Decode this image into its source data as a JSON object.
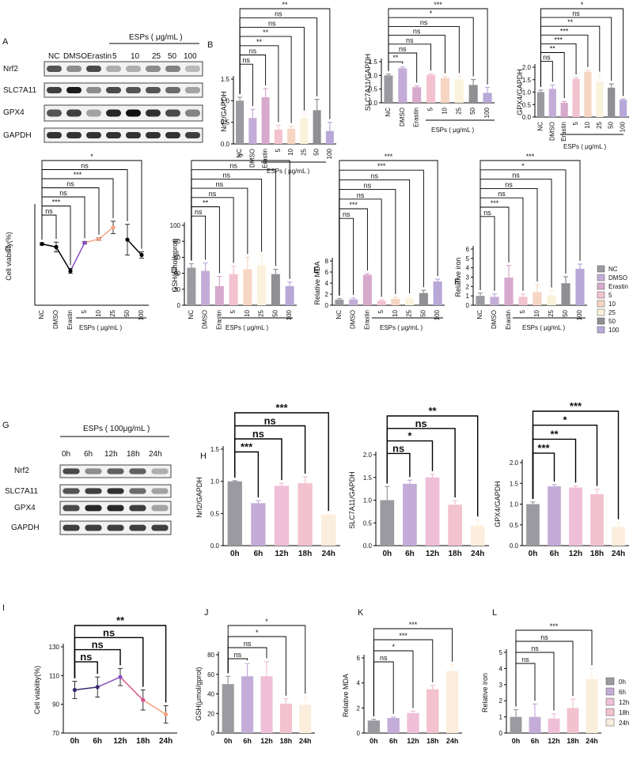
{
  "colors": {
    "NC": "#9a9aa0",
    "DMSO": "#c4acd8",
    "Erastin": "#d7a9cc",
    "5": "#f2c2cf",
    "10": "#f6d5c3",
    "25": "#fbf2dc",
    "50": "#8f8f94",
    "100": "#b7a8d8",
    "0h": "#9a9aa0",
    "6h": "#c4acd8",
    "12h": "#efbfd8",
    "18h": "#f2c2cf",
    "24h": "#fbeedd",
    "line_a": "#000000",
    "line_b": "#8a4fbf",
    "line_c": "#f3a07f"
  },
  "panel_a": {
    "letter": "A",
    "header": "ESPs ( μg/mL )",
    "lanes": [
      "NC",
      "DMSO",
      "Erastin",
      "5",
      "10",
      "25",
      "50",
      "100"
    ],
    "rows": [
      "Nrf2",
      "SLC7A11",
      "GPX4",
      "GAPDH"
    ]
  },
  "panel_g": {
    "letter": "G",
    "header": "ESPs ( 100μg/mL )",
    "lanes": [
      "0h",
      "6h",
      "12h",
      "18h",
      "24h"
    ],
    "rows": [
      "Nrf2",
      "SLC7A11",
      "GPX4",
      "GAPDH"
    ]
  },
  "group_label": "ESPs ( μg/mL )",
  "legend_top": {
    "items": [
      "NC",
      "DMSO",
      "Erastin",
      "5",
      "10",
      "25",
      "50",
      "100"
    ]
  },
  "legend_bottom": {
    "items": [
      "0h",
      "6h",
      "12h",
      "18h",
      "24h"
    ]
  },
  "chart_data": [
    {
      "id": "B1",
      "letter": "B",
      "type": "bar",
      "ylabel": "Nrf2/GAPDH",
      "categories": [
        "NC",
        "DMSO",
        "Erastin",
        "5",
        "10",
        "25",
        "50",
        "100"
      ],
      "values": [
        1.0,
        0.6,
        1.08,
        0.33,
        0.35,
        0.6,
        0.78,
        0.3
      ],
      "errors": [
        0.08,
        0.2,
        0.2,
        0.1,
        0.06,
        0.1,
        0.25,
        0.2
      ],
      "ylim": [
        0,
        1.5
      ],
      "yticks": [
        0,
        0.5,
        1.0,
        1.5
      ],
      "sig": [
        {
          "to": "DMSO",
          "label": "ns"
        },
        {
          "to": "Erastin",
          "label": "ns"
        },
        {
          "to": "5",
          "label": "**"
        },
        {
          "to": "10",
          "label": "**"
        },
        {
          "to": "25",
          "label": "ns"
        },
        {
          "to": "50",
          "label": "ns"
        },
        {
          "to": "100",
          "label": "**"
        }
      ]
    },
    {
      "id": "B2",
      "type": "bar",
      "ylabel": "SLC7A11/GAPDH",
      "categories": [
        "NC",
        "DMSO",
        "Erastin",
        "5",
        "10",
        "25",
        "50",
        "100"
      ],
      "values": [
        1.0,
        1.26,
        0.57,
        1.02,
        0.9,
        0.85,
        0.65,
        0.36
      ],
      "errors": [
        0.05,
        0.05,
        0.05,
        0.04,
        0.06,
        0.12,
        0.2,
        0.2
      ],
      "ylim": [
        0,
        1.5
      ],
      "yticks": [
        0,
        0.5,
        1.0,
        1.5
      ],
      "sig": [
        {
          "to": "DMSO",
          "label": "**"
        },
        {
          "to": "Erastin",
          "label": "ns"
        },
        {
          "to": "5",
          "label": "ns"
        },
        {
          "to": "10",
          "label": "ns"
        },
        {
          "to": "25",
          "label": "ns"
        },
        {
          "to": "50",
          "label": "*"
        },
        {
          "to": "100",
          "label": "***"
        }
      ]
    },
    {
      "id": "B3",
      "type": "bar",
      "ylabel": "GPX4/GAPDH",
      "categories": [
        "NC",
        "DMSO",
        "Erastin",
        "5",
        "10",
        "25",
        "50",
        "100"
      ],
      "values": [
        1.0,
        1.13,
        0.57,
        1.53,
        1.82,
        1.42,
        1.18,
        0.69
      ],
      "errors": [
        0.08,
        0.15,
        0.06,
        0.05,
        0.06,
        0.28,
        0.15,
        0.03
      ],
      "ylim": [
        0,
        2.0
      ],
      "yticks": [
        0,
        0.5,
        1.0,
        1.5,
        2.0
      ],
      "sig": [
        {
          "to": "DMSO",
          "label": "ns"
        },
        {
          "to": "Erastin",
          "label": "**"
        },
        {
          "to": "5",
          "label": "***"
        },
        {
          "to": "10",
          "label": "***"
        },
        {
          "to": "25",
          "label": "**"
        },
        {
          "to": "50",
          "label": "ns"
        },
        {
          "to": "100",
          "label": "*"
        }
      ]
    },
    {
      "id": "C",
      "letter": "C",
      "type": "line",
      "ylabel": "Cell viability(%)",
      "categories": [
        "NC",
        "DMSO",
        "Erastin",
        "5",
        "10",
        "25",
        "50",
        "100"
      ],
      "values": [
        100,
        95,
        56,
        102,
        108,
        127,
        107,
        82
      ],
      "errors": [
        2,
        8,
        4,
        2,
        2,
        10,
        25,
        5
      ],
      "ylim": [
        0,
        160
      ],
      "sig": [
        {
          "to": "DMSO",
          "label": "ns"
        },
        {
          "to": "Erastin",
          "label": "***"
        },
        {
          "to": "5",
          "label": "ns"
        },
        {
          "to": "10",
          "label": "ns"
        },
        {
          "to": "25",
          "label": "***"
        },
        {
          "to": "50",
          "label": "ns"
        },
        {
          "to": "100",
          "label": "*"
        }
      ]
    },
    {
      "id": "D",
      "letter": "D",
      "type": "bar",
      "ylabel": "GSH(μmol/gprot)",
      "categories": [
        "NC",
        "DMSO",
        "Erastin",
        "5",
        "10",
        "25",
        "50",
        "100"
      ],
      "values": [
        47,
        43,
        24,
        39,
        45,
        50,
        39,
        24
      ],
      "errors": [
        5,
        10,
        12,
        10,
        15,
        13,
        6,
        5
      ],
      "ylim": [
        0,
        100
      ],
      "yticks": [
        0,
        20,
        40,
        60,
        80,
        100
      ],
      "sig": [
        {
          "to": "DMSO",
          "label": "ns"
        },
        {
          "to": "Erastin",
          "label": "**"
        },
        {
          "to": "5",
          "label": "ns"
        },
        {
          "to": "10",
          "label": "ns"
        },
        {
          "to": "25",
          "label": "ns"
        },
        {
          "to": "50",
          "label": "ns"
        },
        {
          "to": "100",
          "label": "**"
        }
      ]
    },
    {
      "id": "E",
      "letter": "E",
      "type": "bar",
      "ylabel": "Relative MDA",
      "categories": [
        "NC",
        "DMSO",
        "Erastin",
        "5",
        "10",
        "25",
        "50",
        "100"
      ],
      "values": [
        1.0,
        1.05,
        5.5,
        0.8,
        1.15,
        1.2,
        2.2,
        4.3
      ],
      "errors": [
        0.2,
        0.25,
        0.2,
        0.15,
        0.3,
        0.35,
        0.5,
        0.4
      ],
      "ylim": [
        0,
        8
      ],
      "yticks": [
        0,
        2,
        4,
        6,
        8
      ],
      "sig": [
        {
          "to": "DMSO",
          "label": "ns"
        },
        {
          "to": "Erastin",
          "label": "***"
        },
        {
          "to": "5",
          "label": "ns"
        },
        {
          "to": "10",
          "label": "ns"
        },
        {
          "to": "25",
          "label": "ns"
        },
        {
          "to": "50",
          "label": "***"
        },
        {
          "to": "100",
          "label": "***"
        }
      ]
    },
    {
      "id": "F",
      "letter": "F",
      "type": "bar",
      "ylabel": "Relative iron",
      "categories": [
        "NC",
        "DMSO",
        "Erastin",
        "5",
        "10",
        "25",
        "50",
        "100"
      ],
      "values": [
        1.0,
        0.9,
        2.95,
        0.9,
        1.4,
        1.05,
        2.35,
        3.9
      ],
      "errors": [
        0.3,
        0.3,
        1.3,
        0.3,
        0.8,
        0.5,
        0.7,
        0.5
      ],
      "ylim": [
        0,
        6
      ],
      "yticks": [
        0,
        1,
        2,
        3,
        4,
        5,
        6
      ],
      "sig": [
        {
          "to": "DMSO",
          "label": "ns"
        },
        {
          "to": "Erastin",
          "label": "***"
        },
        {
          "to": "5",
          "label": "ns"
        },
        {
          "to": "10",
          "label": "ns"
        },
        {
          "to": "25",
          "label": "ns"
        },
        {
          "to": "50",
          "label": "*"
        },
        {
          "to": "100",
          "label": "***"
        }
      ]
    },
    {
      "id": "H1",
      "letter": "H",
      "type": "bar",
      "ylabel": "Nrf2/GAPDH",
      "categories": [
        "0h",
        "6h",
        "12h",
        "18h",
        "24h"
      ],
      "values": [
        1.0,
        0.66,
        0.93,
        0.97,
        0.48
      ],
      "errors": [
        0.01,
        0.04,
        0.04,
        0.1,
        0.01
      ],
      "ylim": [
        0,
        1.5
      ],
      "yticks": [
        0.0,
        0.5,
        1.0,
        1.5
      ],
      "sig": [
        {
          "to": "6h",
          "label": "***"
        },
        {
          "to": "12h",
          "label": "ns"
        },
        {
          "to": "18h",
          "label": "ns"
        },
        {
          "to": "24h",
          "label": "***"
        }
      ]
    },
    {
      "id": "H2",
      "type": "bar",
      "ylabel": "SLC7A11/GAPDH",
      "categories": [
        "0h",
        "6h",
        "12h",
        "18h",
        "24h"
      ],
      "values": [
        1.0,
        1.36,
        1.5,
        0.9,
        0.44
      ],
      "errors": [
        0.3,
        0.08,
        0.07,
        0.09,
        0.13
      ],
      "ylim": [
        0,
        2.0
      ],
      "yticks": [
        0.0,
        0.5,
        1.0,
        1.5,
        2.0
      ],
      "sig": [
        {
          "to": "6h",
          "label": "ns"
        },
        {
          "to": "12h",
          "label": "*"
        },
        {
          "to": "18h",
          "label": "ns"
        },
        {
          "to": "24h",
          "label": "**"
        }
      ]
    },
    {
      "id": "H3",
      "type": "bar",
      "ylabel": "GPX4/GAPDH",
      "categories": [
        "0h",
        "6h",
        "12h",
        "18h",
        "24h"
      ],
      "values": [
        1.0,
        1.43,
        1.4,
        1.24,
        0.45
      ],
      "errors": [
        0.05,
        0.04,
        0.04,
        0.12,
        0.11
      ],
      "ylim": [
        0,
        2.0
      ],
      "yticks": [
        0.0,
        0.5,
        1.0,
        1.5,
        2.0
      ],
      "sig": [
        {
          "to": "6h",
          "label": "***"
        },
        {
          "to": "12h",
          "label": "**"
        },
        {
          "to": "18h",
          "label": "*"
        },
        {
          "to": "24h",
          "label": "***"
        }
      ]
    },
    {
      "id": "I",
      "letter": "I",
      "type": "line",
      "ylabel": "Cell viability(%)",
      "categories": [
        "0h",
        "6h",
        "12h",
        "18h",
        "24h"
      ],
      "values": [
        100,
        102,
        109,
        93,
        83
      ],
      "errors": [
        6,
        7,
        6,
        7,
        6
      ],
      "ylim": [
        70,
        130
      ],
      "yticks": [
        70,
        90,
        110,
        130
      ],
      "sig": [
        {
          "to": "6h",
          "label": "ns"
        },
        {
          "to": "12h",
          "label": "ns"
        },
        {
          "to": "18h",
          "label": "ns"
        },
        {
          "to": "24h",
          "label": "**"
        }
      ]
    },
    {
      "id": "J",
      "letter": "J",
      "type": "bar",
      "ylabel": "GSH(μmol/gprot)",
      "categories": [
        "0h",
        "6h",
        "12h",
        "18h",
        "24h"
      ],
      "values": [
        50,
        58,
        58,
        30,
        29
      ],
      "errors": [
        8,
        13,
        15,
        5,
        8
      ],
      "ylim": [
        0,
        80
      ],
      "yticks": [
        0,
        20,
        40,
        60,
        80
      ],
      "sig": [
        {
          "to": "6h",
          "label": "ns"
        },
        {
          "to": "12h",
          "label": "ns"
        },
        {
          "to": "18h",
          "label": "*"
        },
        {
          "to": "24h",
          "label": "*"
        }
      ]
    },
    {
      "id": "K",
      "letter": "K",
      "type": "bar",
      "ylabel": "Relative MDA",
      "categories": [
        "0h",
        "6h",
        "12h",
        "18h",
        "24h"
      ],
      "values": [
        1.0,
        1.2,
        1.6,
        3.5,
        4.95
      ],
      "errors": [
        0.1,
        0.08,
        0.15,
        0.3,
        0.5
      ],
      "ylim": [
        0,
        6
      ],
      "yticks": [
        0,
        2,
        4,
        6
      ],
      "sig": [
        {
          "to": "6h",
          "label": "ns"
        },
        {
          "to": "12h",
          "label": "*"
        },
        {
          "to": "18h",
          "label": "***"
        },
        {
          "to": "24h",
          "label": "***"
        }
      ]
    },
    {
      "id": "L",
      "letter": "L",
      "type": "bar",
      "ylabel": "Relative iron",
      "categories": [
        "0h",
        "6h",
        "12h",
        "18h",
        "24h"
      ],
      "values": [
        1.0,
        1.0,
        0.9,
        1.55,
        3.35
      ],
      "errors": [
        0.45,
        0.8,
        0.3,
        0.55,
        0.65
      ],
      "ylim": [
        0,
        5
      ],
      "yticks": [
        0,
        1,
        2,
        3,
        4,
        5
      ],
      "sig": [
        {
          "to": "6h",
          "label": "ns"
        },
        {
          "to": "12h",
          "label": "ns"
        },
        {
          "to": "18h",
          "label": "ns"
        },
        {
          "to": "24h",
          "label": "***"
        }
      ]
    }
  ]
}
